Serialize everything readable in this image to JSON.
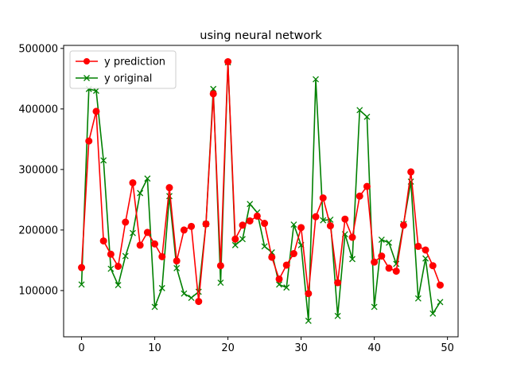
{
  "chart_data": {
    "type": "line",
    "title": "using neural network",
    "xlabel": "",
    "ylabel": "",
    "xlim": [
      -2.45,
      51.45
    ],
    "ylim": [
      23600,
      505000
    ],
    "xticks": [
      0,
      10,
      20,
      30,
      40,
      50
    ],
    "yticks": [
      100000,
      200000,
      300000,
      400000,
      500000
    ],
    "grid": false,
    "legend_position": "upper-left",
    "series": [
      {
        "name": "y prediction",
        "color": "#ff0000",
        "marker": "circle",
        "x": [
          0,
          1,
          2,
          3,
          4,
          5,
          6,
          7,
          8,
          9,
          10,
          11,
          12,
          13,
          14,
          15,
          16,
          17,
          18,
          19,
          20,
          21,
          22,
          23,
          24,
          25,
          26,
          27,
          28,
          29,
          30,
          31,
          32,
          33,
          34,
          35,
          36,
          37,
          38,
          39,
          40,
          41,
          42,
          43,
          44,
          45,
          46,
          47,
          48,
          49
        ],
        "values": [
          138000,
          347000,
          396000,
          182000,
          160000,
          140000,
          213000,
          278000,
          175000,
          196000,
          177000,
          156000,
          270000,
          149000,
          200000,
          206000,
          82000,
          210000,
          425000,
          141000,
          478000,
          185000,
          208000,
          215000,
          223000,
          211000,
          155000,
          119000,
          142000,
          161000,
          204000,
          95000,
          222000,
          253000,
          207000,
          113000,
          218000,
          188000,
          256000,
          272000,
          147000,
          157000,
          137000,
          132000,
          208000,
          296000,
          173000,
          167000,
          141000,
          109000
        ]
      },
      {
        "name": "y original",
        "color": "#008000",
        "marker": "x",
        "x": [
          0,
          1,
          2,
          3,
          4,
          5,
          6,
          7,
          8,
          9,
          10,
          11,
          12,
          13,
          14,
          15,
          16,
          17,
          18,
          19,
          20,
          21,
          22,
          23,
          24,
          25,
          26,
          27,
          28,
          29,
          30,
          31,
          32,
          33,
          34,
          35,
          36,
          37,
          38,
          39,
          40,
          41,
          42,
          43,
          44,
          45,
          46,
          47,
          48,
          49
        ],
        "values": [
          110000,
          433000,
          430000,
          315000,
          136000,
          109000,
          157000,
          195000,
          261000,
          285000,
          73000,
          104000,
          256000,
          137000,
          95000,
          88000,
          98000,
          210000,
          433000,
          113000,
          477000,
          175000,
          185000,
          243000,
          229000,
          173000,
          163000,
          110000,
          105000,
          209000,
          175000,
          50000,
          449000,
          216000,
          217000,
          58000,
          193000,
          152000,
          398000,
          387000,
          73000,
          184000,
          179000,
          144000,
          210000,
          280000,
          87000,
          153000,
          62000,
          81000
        ]
      }
    ]
  }
}
